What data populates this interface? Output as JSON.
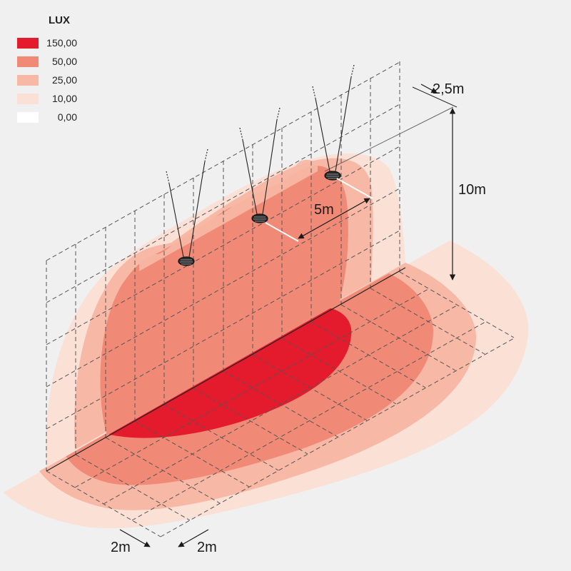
{
  "legend": {
    "title": "LUX",
    "items": [
      {
        "value": "150,00",
        "color": "#e41b2c"
      },
      {
        "value": "50,00",
        "color": "#f08a76"
      },
      {
        "value": "25,00",
        "color": "#f7b8a6"
      },
      {
        "value": "10,00",
        "color": "#fbe0d6"
      },
      {
        "value": "0,00",
        "color": "#ffffff"
      }
    ]
  },
  "dimensions": {
    "width_label": "2,5m",
    "height_label": "10m",
    "spacing_label": "5m",
    "grid_label_1": "2m",
    "grid_label_2": "2m"
  },
  "luminaires": [
    {
      "icon": "lamp-icon"
    },
    {
      "icon": "lamp-icon"
    },
    {
      "icon": "lamp-icon"
    }
  ]
}
